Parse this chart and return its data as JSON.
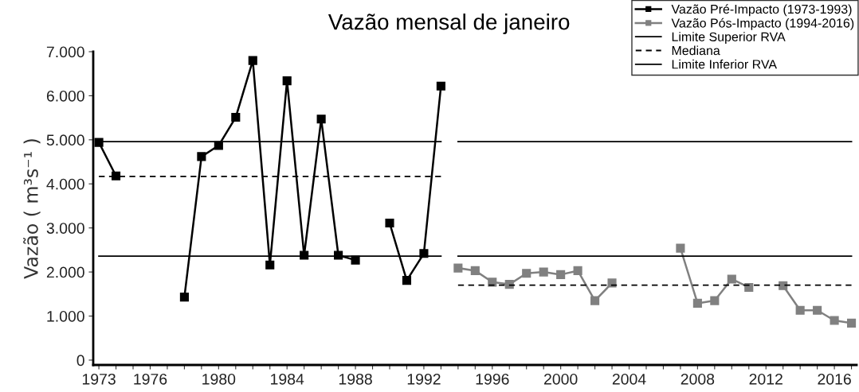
{
  "chart_data": {
    "type": "line",
    "title": "Vazão mensal de janeiro",
    "ylabel": "Vazão ( m³s⁻¹ )",
    "xlim": [
      1972.67,
      2017.3
    ],
    "ylim": [
      -110,
      7000
    ],
    "xticks": [
      1973,
      {
        "value": 1974,
        "label": null
      },
      {
        "value": 1975,
        "label": null
      },
      1976,
      {
        "value": 1977,
        "label": null
      },
      {
        "value": 1978,
        "label": null
      },
      {
        "value": 1979,
        "label": null
      },
      1980,
      {
        "value": 1981,
        "label": null
      },
      {
        "value": 1982,
        "label": null
      },
      {
        "value": 1983,
        "label": null
      },
      1984,
      {
        "value": 1985,
        "label": null
      },
      {
        "value": 1986,
        "label": null
      },
      {
        "value": 1987,
        "label": null
      },
      1988,
      {
        "value": 1989,
        "label": null
      },
      {
        "value": 1990,
        "label": null
      },
      {
        "value": 1991,
        "label": null
      },
      1992,
      {
        "value": 1993,
        "label": null
      },
      {
        "value": 1994,
        "label": null
      },
      {
        "value": 1995,
        "label": null
      },
      1996,
      {
        "value": 1997,
        "label": null
      },
      {
        "value": 1998,
        "label": null
      },
      {
        "value": 1999,
        "label": null
      },
      2000,
      {
        "value": 2001,
        "label": null
      },
      {
        "value": 2002,
        "label": null
      },
      {
        "value": 2003,
        "label": null
      },
      2004,
      {
        "value": 2005,
        "label": null
      },
      {
        "value": 2006,
        "label": null
      },
      {
        "value": 2007,
        "label": null
      },
      2008,
      {
        "value": 2009,
        "label": null
      },
      {
        "value": 2010,
        "label": null
      },
      {
        "value": 2011,
        "label": null
      },
      2012,
      {
        "value": 2013,
        "label": null
      },
      {
        "value": 2014,
        "label": null
      },
      {
        "value": 2015,
        "label": null
      },
      2016,
      {
        "value": 2017,
        "label": null
      }
    ],
    "yticks": [
      {
        "value": 0,
        "label": "0"
      },
      {
        "value": 1000,
        "label": "1.000"
      },
      {
        "value": 2000,
        "label": "2.000"
      },
      {
        "value": 3000,
        "label": "3.000"
      },
      {
        "value": 4000,
        "label": "4.000"
      },
      {
        "value": 5000,
        "label": "5.000"
      },
      {
        "value": 6000,
        "label": "6.000"
      },
      {
        "value": 7000,
        "label": "7.000"
      }
    ],
    "grid": false,
    "legend": "top right",
    "series": [
      {
        "name": "Vazão Pré-Impacto (1973-1993)",
        "color": "#000000",
        "marker": "square",
        "line_style": "solid",
        "x": [
          1973,
          1974,
          1975,
          1976,
          1977,
          1978,
          1979,
          1980,
          1981,
          1982,
          1983,
          1984,
          1985,
          1986,
          1987,
          1988,
          1989,
          1990,
          1991,
          1992,
          1993
        ],
        "values": [
          4940,
          4180,
          null,
          null,
          null,
          1430,
          4620,
          4870,
          5510,
          6800,
          2160,
          6340,
          2380,
          5470,
          2380,
          2270,
          null,
          3110,
          1810,
          2420,
          6220
        ]
      },
      {
        "name": "Vazão Pós-Impacto (1994-2016)",
        "color": "#808080",
        "marker": "square",
        "line_style": "solid",
        "x": [
          1994,
          1995,
          1996,
          1997,
          1998,
          1999,
          2000,
          2001,
          2002,
          2003,
          2004,
          2005,
          2006,
          2007,
          2008,
          2009,
          2010,
          2011,
          2012,
          2013,
          2014,
          2015,
          2016,
          2017
        ],
        "values": [
          2090,
          2030,
          1770,
          1720,
          1970,
          2000,
          1940,
          2030,
          1350,
          1750,
          null,
          null,
          null,
          2540,
          1290,
          1350,
          1840,
          1650,
          null,
          1690,
          1130,
          1130,
          900,
          840
        ]
      },
      {
        "name": "Limite Superior RVA",
        "color": "#000000",
        "marker": "none",
        "line_style": "solid",
        "x": [
          1973,
          1993
        ],
        "values": [
          4960,
          4960
        ]
      },
      {
        "name": "Mediana",
        "color": "#000000",
        "marker": "none",
        "line_style": "dashed",
        "x": [
          1973,
          1993
        ],
        "values": [
          4170,
          4170
        ]
      },
      {
        "name": "Limite Inferior RVA",
        "color": "#000000",
        "marker": "none",
        "line_style": "solid",
        "x": [
          1973,
          1993
        ],
        "values": [
          2360,
          2360
        ]
      },
      {
        "color": "#000000",
        "marker": "none",
        "line_style": "solid",
        "x": [
          1994,
          2017
        ],
        "values": [
          4960,
          4960
        ]
      },
      {
        "color": "#000000",
        "marker": "none",
        "line_style": "dashed",
        "x": [
          1994,
          2017
        ],
        "values": [
          1700,
          1700
        ]
      },
      {
        "color": "#000000",
        "marker": "none",
        "line_style": "solid",
        "x": [
          1994,
          2017
        ],
        "values": [
          2360,
          2360
        ]
      }
    ]
  }
}
